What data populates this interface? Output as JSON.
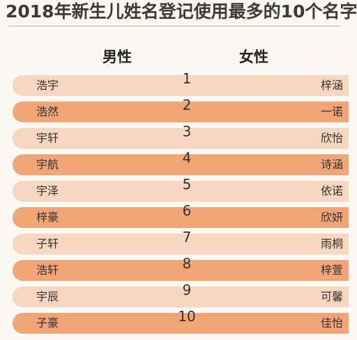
{
  "title": "2018年新生儿姓名登记使用最多的10个名字",
  "headers": {
    "male": "男性",
    "female": "女性"
  },
  "colors": {
    "light_row": "#f7d7bf",
    "dark_row": "#f2a678",
    "background": "#fbf7f1"
  },
  "rows": [
    {
      "rank": "1",
      "male": "浩宇",
      "female": "梓涵"
    },
    {
      "rank": "2",
      "male": "浩然",
      "female": "一诺"
    },
    {
      "rank": "3",
      "male": "宇轩",
      "female": "欣怡"
    },
    {
      "rank": "4",
      "male": "宇航",
      "female": "诗涵"
    },
    {
      "rank": "5",
      "male": "宇泽",
      "female": "依诺"
    },
    {
      "rank": "6",
      "male": "梓豪",
      "female": "欣妍"
    },
    {
      "rank": "7",
      "male": "子轩",
      "female": "雨桐"
    },
    {
      "rank": "8",
      "male": "浩轩",
      "female": "梓萱"
    },
    {
      "rank": "9",
      "male": "宇辰",
      "female": "可馨"
    },
    {
      "rank": "10",
      "male": "子豪",
      "female": "佳怡"
    }
  ]
}
